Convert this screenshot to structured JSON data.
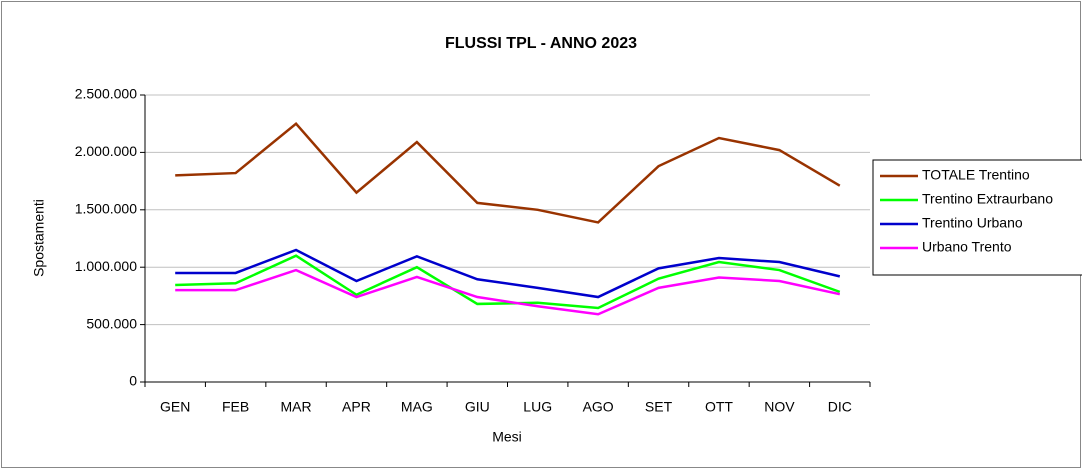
{
  "chart_data": {
    "type": "line",
    "title": "FLUSSI TPL - ANNO 2023",
    "x_label": "Mesi",
    "y_label": "Spostamenti",
    "categories": [
      "GEN",
      "FEB",
      "MAR",
      "APR",
      "MAG",
      "GIU",
      "LUG",
      "AGO",
      "SET",
      "OTT",
      "NOV",
      "DIC"
    ],
    "series": [
      {
        "name": "TOTALE Trentino",
        "color": "#993300",
        "values": [
          1800000,
          1820000,
          2250000,
          1650000,
          2090000,
          1560000,
          1500000,
          1390000,
          1880000,
          2125000,
          2020000,
          1710000
        ]
      },
      {
        "name": "Trentino Extraurbano",
        "color": "#00ff00",
        "values": [
          845000,
          860000,
          1100000,
          760000,
          1000000,
          680000,
          690000,
          645000,
          900000,
          1045000,
          975000,
          785000
        ]
      },
      {
        "name": "Trentino Urbano",
        "color": "#0000cc",
        "values": [
          950000,
          950000,
          1150000,
          880000,
          1095000,
          895000,
          820000,
          740000,
          990000,
          1080000,
          1045000,
          920000
        ]
      },
      {
        "name": "Urbano Trento",
        "color": "#ff00ff",
        "values": [
          800000,
          800000,
          975000,
          740000,
          915000,
          740000,
          660000,
          590000,
          820000,
          910000,
          880000,
          765000
        ]
      }
    ],
    "ylim": [
      0,
      2500000
    ],
    "yticks": [
      0,
      {
        "value": 500000,
        "label": "500.000"
      },
      {
        "value": 1000000,
        "label": "1.000.000"
      },
      {
        "value": 1500000,
        "label": "1.500.000"
      },
      {
        "value": 2000000,
        "label": "2.000.000"
      },
      {
        "value": 2500000,
        "label": "2.500.000"
      }
    ],
    "grid": true,
    "legend": "right"
  }
}
